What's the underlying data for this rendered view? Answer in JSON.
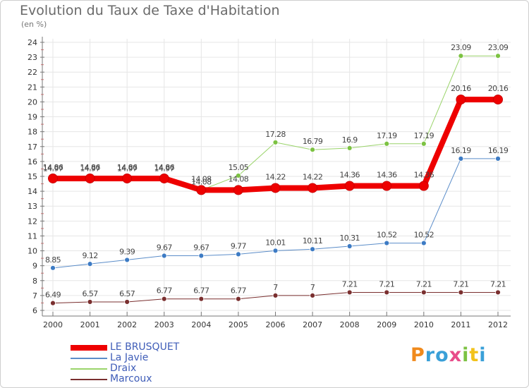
{
  "title": "Evolution du Taux de Taxe d'Habitation",
  "unit_label": "(en %)",
  "logo_text": "Proxiti",
  "colors": {
    "background": "#ffffff",
    "grid": "#e6e6e6",
    "axis": "#777777",
    "tick_text": "#333333",
    "value_text": "#444444",
    "title": "#6a6a6a",
    "legend_text": "#3f5db8"
  },
  "chart_data": {
    "type": "line",
    "x": [
      "2000",
      "2001",
      "2002",
      "2003",
      "2004",
      "2005",
      "2006",
      "2007",
      "2008",
      "2009",
      "2010",
      "2011",
      "2012"
    ],
    "ylim": [
      6,
      24
    ],
    "yticks": [
      6,
      7,
      8,
      9,
      10,
      11,
      12,
      13,
      14,
      15,
      16,
      17,
      18,
      19,
      20,
      21,
      22,
      23,
      24
    ],
    "grid": true,
    "legend_position": "bottom-left",
    "series": [
      {
        "name": "Marcoux",
        "color": "#7a2f2f",
        "marker": "#7a2f2f",
        "width": 1,
        "values": [
          6.49,
          6.57,
          6.57,
          6.77,
          6.77,
          6.77,
          7,
          7,
          7.21,
          7.21,
          7.21,
          7.21,
          7.21
        ],
        "labels": [
          "6.49",
          "6.57",
          "6.57",
          "6.77",
          "6.77",
          "6.77",
          "7",
          "7",
          "7.21",
          "7.21",
          "7.21",
          "7.21",
          "7.21"
        ]
      },
      {
        "name": "La Javie",
        "color": "#5b8dc9",
        "marker": "#3d7bc4",
        "width": 1,
        "values": [
          8.85,
          9.12,
          9.39,
          9.67,
          9.67,
          9.77,
          10.01,
          10.11,
          10.31,
          10.52,
          10.52,
          16.19,
          16.19
        ],
        "labels": [
          "8.85",
          "9.12",
          "9.39",
          "9.67",
          "9.67",
          "9.77",
          "10.01",
          "10.11",
          "10.31",
          "10.52",
          "10.52",
          "16.19",
          "16.19"
        ]
      },
      {
        "name": "Draix",
        "color": "#9ad46a",
        "marker": "#7cc242",
        "width": 1,
        "values": [
          14.97,
          14.97,
          14.97,
          14.97,
          14.08,
          15.05,
          17.28,
          16.79,
          16.9,
          17.19,
          17.19,
          23.09,
          23.09
        ],
        "labels": [
          "14.97",
          "14.97",
          "14.97",
          "14.97",
          "14.08",
          "15.05",
          "17.28",
          "16.79",
          "16.9",
          "17.19",
          "17.19",
          "23.09",
          "23.09"
        ]
      },
      {
        "name": "LE BRUSQUET",
        "color": "#ee0000",
        "marker": "#ee0000",
        "width": 8,
        "values": [
          14.86,
          14.86,
          14.86,
          14.86,
          14.08,
          14.08,
          14.22,
          14.22,
          14.36,
          14.36,
          14.36,
          20.16,
          20.16
        ],
        "labels": [
          "14.86",
          "14.86",
          "14.86",
          "14.86",
          "14.08",
          "14.08",
          "14.22",
          "14.22",
          "14.36",
          "14.36",
          "14.36",
          "20.16",
          "20.16"
        ]
      }
    ],
    "legend_order": [
      "LE BRUSQUET",
      "La Javie",
      "Draix",
      "Marcoux"
    ]
  }
}
